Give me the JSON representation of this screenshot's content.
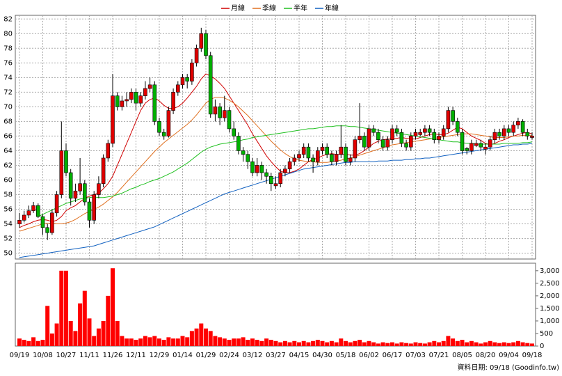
{
  "chart_data": {
    "type": "candlestick",
    "legend_position": "top",
    "series": [
      {
        "name": "月線",
        "color": "#d00000",
        "values": [
          53.5,
          53.8,
          54.0,
          54.3,
          54.5,
          54.6,
          54.5,
          54.3,
          54.5,
          55.0,
          55.8,
          56.2,
          56.5,
          57.0,
          57.5,
          57.8,
          58.0,
          58.2,
          58.8,
          59.5,
          60.5,
          62.0,
          63.5,
          65.0,
          66.5,
          68.0,
          69.5,
          70.5,
          71.0,
          71.2,
          70.8,
          70.2,
          69.8,
          69.8,
          70.0,
          70.5,
          71.2,
          72.0,
          72.8,
          73.8,
          74.5,
          74.2,
          73.8,
          73.2,
          72.5,
          71.5,
          70.5,
          69.5,
          68.5,
          67.5,
          66.3,
          65.3,
          64.3,
          63.3,
          62.5,
          61.8,
          61.2,
          61.0,
          61.0,
          61.2,
          61.5,
          62.0,
          62.5,
          62.8,
          63.0,
          63.3,
          63.5,
          63.6,
          63.5,
          63.5,
          63.5,
          63.4,
          63.4,
          63.6,
          64.0,
          64.5,
          65.0,
          65.3,
          65.5,
          65.6,
          65.6,
          65.7,
          65.8,
          65.7,
          65.6,
          65.6,
          65.8,
          66.0,
          66.2,
          66.3,
          66.2,
          66.2,
          66.4,
          66.8,
          67.2,
          67.0,
          66.5,
          66.0,
          65.7,
          65.4,
          65.0,
          64.8,
          65.0,
          65.3,
          65.5,
          65.8,
          66.0,
          66.2,
          66.4,
          66.5,
          66.3
        ]
      },
      {
        "name": "季線",
        "color": "#e07020",
        "values": [
          53.0,
          53.2,
          53.4,
          53.6,
          53.8,
          54.0,
          54.1,
          54.1,
          54.0,
          54.0,
          54.1,
          54.3,
          54.6,
          55.0,
          55.4,
          55.7,
          56.0,
          56.3,
          56.7,
          57.2,
          57.7,
          58.3,
          59.0,
          59.7,
          60.4,
          61.1,
          61.8,
          62.5,
          63.2,
          63.9,
          64.5,
          65.1,
          65.6,
          66.1,
          66.6,
          67.1,
          67.6,
          68.2,
          68.9,
          69.7,
          70.5,
          71.0,
          71.3,
          71.3,
          71.2,
          70.9,
          70.5,
          70.0,
          69.4,
          68.8,
          68.1,
          67.4,
          66.7,
          66.0,
          65.3,
          64.7,
          64.1,
          63.6,
          63.2,
          62.9,
          62.7,
          62.6,
          62.5,
          62.5,
          62.4,
          62.4,
          62.4,
          62.5,
          62.6,
          62.7,
          62.9,
          63.0,
          63.2,
          63.4,
          63.6,
          63.8,
          64.0,
          64.2,
          64.4,
          64.6,
          64.8,
          64.9,
          65.0,
          65.1,
          65.2,
          65.3,
          65.4,
          65.5,
          65.6,
          65.7,
          65.8,
          65.9,
          66.0,
          66.1,
          66.2,
          66.3,
          66.3,
          66.3,
          66.2,
          66.1,
          66.0,
          65.9,
          65.8,
          65.8,
          65.8,
          65.9,
          66.0,
          66.0,
          66.1,
          66.1,
          66.1
        ]
      },
      {
        "name": "半年",
        "color": "#20c020",
        "values": [
          null,
          null,
          null,
          null,
          55.0,
          55.3,
          55.6,
          55.9,
          56.2,
          56.5,
          56.8,
          57.0,
          57.2,
          57.4,
          57.5,
          57.6,
          57.7,
          57.6,
          57.6,
          57.7,
          57.8,
          58.0,
          58.2,
          58.5,
          58.8,
          59.0,
          59.3,
          59.5,
          59.8,
          60.0,
          60.2,
          60.5,
          60.8,
          61.1,
          61.5,
          61.9,
          62.3,
          62.8,
          63.3,
          63.8,
          64.2,
          64.5,
          64.7,
          64.9,
          65.0,
          65.1,
          65.2,
          65.3,
          65.5,
          65.6,
          65.8,
          65.9,
          66.0,
          66.1,
          66.2,
          66.3,
          66.4,
          66.5,
          66.6,
          66.7,
          66.8,
          66.9,
          67.0,
          67.0,
          67.1,
          67.2,
          67.3,
          67.3,
          67.4,
          67.4,
          67.4,
          67.3,
          67.3,
          67.2,
          67.1,
          67.0,
          66.9,
          66.8,
          66.7,
          66.6,
          66.5,
          66.4,
          66.3,
          66.2,
          66.1,
          66.0,
          65.9,
          65.8,
          65.7,
          65.6,
          65.5,
          65.4,
          65.3,
          65.2,
          65.2,
          65.1,
          65.0,
          65.0,
          64.9,
          64.9,
          64.9,
          64.9,
          64.9,
          64.9,
          65.0,
          65.0,
          65.0,
          65.0,
          65.1,
          65.1,
          65.2
        ]
      },
      {
        "name": "年線",
        "color": "#1060c0",
        "values": [
          49.4,
          49.5,
          49.6,
          49.7,
          49.8,
          49.9,
          50.0,
          50.1,
          50.2,
          50.3,
          50.4,
          50.5,
          50.6,
          50.7,
          50.8,
          50.9,
          51.0,
          51.2,
          51.4,
          51.6,
          51.8,
          52.0,
          52.2,
          52.4,
          52.6,
          52.8,
          53.0,
          53.2,
          53.4,
          53.6,
          53.9,
          54.2,
          54.5,
          54.8,
          55.1,
          55.4,
          55.7,
          56.0,
          56.3,
          56.6,
          56.9,
          57.2,
          57.5,
          57.8,
          58.1,
          58.3,
          58.5,
          58.7,
          58.9,
          59.1,
          59.3,
          59.5,
          59.7,
          59.9,
          60.1,
          60.3,
          60.5,
          60.7,
          60.9,
          61.1,
          61.3,
          61.5,
          61.6,
          61.7,
          61.8,
          61.9,
          62.0,
          62.1,
          62.2,
          62.3,
          62.4,
          62.4,
          62.5,
          62.5,
          62.5,
          62.5,
          62.5,
          62.6,
          62.6,
          62.6,
          62.7,
          62.7,
          62.7,
          62.8,
          62.8,
          62.9,
          62.9,
          63.0,
          63.0,
          63.1,
          63.2,
          63.3,
          63.4,
          63.5,
          63.6,
          63.7,
          63.8,
          63.9,
          64.0,
          64.1,
          64.2,
          64.3,
          64.4,
          64.5,
          64.6,
          64.7,
          64.8,
          64.8,
          64.9,
          64.9,
          65.0
        ]
      }
    ],
    "open": [
      54.0,
      54.5,
      55.2,
      55.8,
      56.5,
      55.0,
      53.5,
      52.8,
      55.5,
      58.0,
      64.0,
      61.0,
      57.5,
      58.5,
      59.5,
      57.0,
      54.5,
      58.0,
      59.5,
      63.0,
      65.0,
      71.5,
      70.0,
      70.8,
      71.0,
      72.0,
      70.5,
      71.5,
      72.5,
      73.0,
      68.0,
      66.5,
      66.0,
      69.5,
      72.0,
      73.0,
      74.0,
      73.5,
      76.0,
      78.0,
      80.0,
      77.0,
      69.0,
      70.0,
      68.5,
      69.5,
      67.0,
      66.0,
      64.0,
      63.5,
      62.5,
      61.0,
      62.0,
      61.0,
      60.5,
      59.2,
      59.5,
      61.0,
      61.5,
      62.5,
      63.0,
      63.5,
      64.5,
      63.0,
      62.5,
      64.0,
      64.5,
      63.5,
      62.5,
      63.5,
      64.5,
      62.5,
      63.0,
      65.5,
      66.0,
      64.5,
      67.0,
      66.5,
      65.5,
      64.5,
      65.5,
      67.0,
      66.5,
      65.0,
      64.5,
      66.0,
      66.2,
      66.5,
      67.0,
      66.5,
      65.5,
      66.0,
      67.0,
      69.5,
      68.0,
      66.5,
      64.3,
      64.0,
      64.7,
      65.0,
      64.2,
      64.5,
      65.5,
      66.5,
      66.0,
      67.0,
      66.5,
      67.5,
      68.0,
      66.5,
      65.8
    ],
    "high": [
      55.5,
      55.8,
      56.5,
      57.0,
      56.8,
      55.3,
      54.0,
      56.0,
      58.5,
      68.0,
      65.0,
      61.5,
      59.5,
      63.0,
      60.0,
      57.5,
      58.5,
      60.5,
      63.5,
      65.5,
      74.5,
      72.0,
      71.5,
      72.0,
      72.5,
      72.5,
      72.0,
      73.5,
      74.0,
      73.5,
      68.5,
      67.0,
      70.0,
      72.5,
      73.5,
      74.5,
      74.5,
      76.5,
      78.5,
      80.8,
      80.5,
      77.5,
      71.0,
      70.5,
      71.5,
      70.0,
      68.0,
      66.5,
      64.5,
      64.0,
      63.0,
      63.0,
      62.5,
      61.5,
      61.0,
      60.5,
      61.5,
      62.0,
      63.0,
      63.5,
      64.0,
      65.0,
      65.0,
      63.5,
      64.5,
      65.0,
      65.0,
      64.0,
      64.0,
      67.5,
      65.0,
      63.5,
      66.0,
      70.5,
      66.5,
      67.5,
      67.5,
      67.0,
      66.0,
      66.0,
      67.5,
      67.5,
      67.0,
      65.5,
      66.5,
      67.0,
      67.0,
      67.5,
      67.5,
      67.0,
      66.5,
      67.5,
      70.0,
      70.0,
      68.5,
      67.0,
      64.5,
      65.5,
      65.5,
      65.5,
      65.0,
      66.0,
      67.0,
      67.0,
      67.5,
      67.5,
      68.0,
      68.5,
      68.3,
      67.0,
      66.5
    ],
    "low": [
      53.5,
      54.2,
      54.8,
      55.5,
      54.8,
      52.5,
      51.8,
      52.5,
      55.0,
      57.5,
      60.5,
      56.5,
      57.0,
      58.0,
      56.5,
      53.5,
      54.0,
      57.5,
      59.0,
      62.5,
      64.5,
      69.5,
      69.5,
      70.0,
      70.5,
      69.5,
      70.0,
      71.0,
      72.0,
      67.5,
      66.0,
      65.5,
      65.8,
      69.0,
      71.5,
      72.5,
      72.5,
      73.0,
      75.5,
      77.5,
      76.5,
      68.5,
      68.0,
      67.5,
      68.0,
      66.5,
      65.5,
      63.5,
      62.5,
      61.5,
      60.5,
      60.5,
      60.0,
      59.5,
      58.5,
      58.8,
      59.0,
      60.5,
      61.0,
      62.0,
      62.5,
      63.0,
      62.5,
      61.0,
      62.0,
      63.5,
      63.0,
      62.0,
      62.0,
      63.0,
      62.0,
      62.0,
      62.5,
      65.0,
      64.0,
      64.0,
      66.0,
      65.0,
      64.0,
      64.0,
      65.0,
      66.0,
      64.5,
      64.0,
      64.0,
      65.5,
      66.0,
      66.0,
      66.0,
      65.0,
      65.0,
      65.5,
      66.5,
      67.5,
      66.0,
      63.5,
      63.5,
      63.5,
      64.5,
      64.0,
      63.5,
      64.0,
      65.0,
      65.5,
      65.5,
      66.0,
      66.0,
      67.0,
      66.0,
      65.5,
      65.5
    ],
    "close": [
      54.5,
      55.2,
      55.8,
      56.5,
      55.0,
      53.5,
      52.8,
      55.5,
      58.0,
      64.0,
      61.0,
      57.5,
      58.5,
      59.5,
      57.0,
      54.5,
      58.0,
      59.5,
      63.0,
      65.0,
      71.5,
      70.0,
      70.8,
      71.0,
      72.0,
      70.5,
      71.5,
      72.5,
      73.0,
      68.0,
      66.5,
      66.0,
      69.5,
      72.0,
      73.0,
      74.0,
      73.5,
      76.0,
      78.0,
      80.0,
      77.0,
      69.0,
      70.0,
      68.5,
      69.5,
      67.0,
      66.0,
      64.0,
      63.5,
      62.5,
      61.0,
      62.0,
      61.0,
      60.5,
      59.5,
      59.5,
      61.0,
      61.5,
      62.5,
      63.0,
      63.5,
      64.5,
      63.0,
      62.5,
      64.0,
      64.5,
      63.5,
      62.5,
      63.5,
      64.5,
      62.5,
      63.0,
      65.5,
      66.0,
      64.5,
      67.0,
      66.5,
      65.5,
      64.5,
      65.5,
      67.0,
      66.5,
      65.0,
      64.5,
      66.0,
      66.5,
      66.5,
      67.0,
      66.5,
      65.5,
      66.0,
      67.0,
      69.5,
      68.0,
      66.5,
      64.0,
      64.0,
      65.0,
      65.0,
      64.5,
      64.5,
      65.5,
      66.5,
      66.0,
      67.0,
      66.5,
      67.5,
      68.0,
      66.5,
      66.0,
      66.0
    ],
    "volume": [
      300,
      250,
      200,
      350,
      200,
      250,
      1600,
      500,
      900,
      3000,
      3000,
      1000,
      600,
      1700,
      2200,
      1100,
      400,
      700,
      1000,
      2000,
      3100,
      1000,
      400,
      300,
      300,
      250,
      300,
      400,
      350,
      400,
      300,
      250,
      350,
      300,
      300,
      400,
      350,
      600,
      700,
      900,
      700,
      600,
      400,
      350,
      300,
      250,
      300,
      300,
      350,
      250,
      300,
      250,
      200,
      300,
      250,
      200,
      150,
      200,
      150,
      200,
      150,
      200,
      150,
      200,
      250,
      200,
      150,
      200,
      150,
      300,
      200,
      150,
      200,
      250,
      150,
      200,
      150,
      100,
      150,
      120,
      150,
      100,
      150,
      120,
      100,
      150,
      120,
      100,
      150,
      200,
      150,
      200,
      400,
      300,
      200,
      250,
      150,
      200,
      150,
      100,
      150,
      200,
      150,
      120,
      150,
      120,
      150,
      200,
      150,
      120,
      100
    ],
    "up_color": "#e00000",
    "down_color": "#00b000",
    "volume_color": "#ff0000",
    "xticks": [
      {
        "value": 0,
        "label": "09/19"
      },
      {
        "value": 5,
        "label": "10/08"
      },
      {
        "value": 10,
        "label": "10/27"
      },
      {
        "value": 15,
        "label": "11/11"
      },
      {
        "value": 20,
        "label": "11/26"
      },
      {
        "value": 25,
        "label": "12/11"
      },
      {
        "value": 30,
        "label": "12/29"
      },
      {
        "value": 35,
        "label": "01/14"
      },
      {
        "value": 40,
        "label": "01/29"
      },
      {
        "value": 45,
        "label": "02/24"
      },
      {
        "value": 50,
        "label": "03/12"
      },
      {
        "value": 55,
        "label": "03/27"
      },
      {
        "value": 60,
        "label": "04/15"
      },
      {
        "value": 65,
        "label": "04/30"
      },
      {
        "value": 70,
        "label": "05/18"
      },
      {
        "value": 75,
        "label": "06/02"
      },
      {
        "value": 80,
        "label": "06/17"
      },
      {
        "value": 85,
        "label": "07/03"
      },
      {
        "value": 90,
        "label": "07/21"
      },
      {
        "value": 95,
        "label": "08/05"
      },
      {
        "value": 100,
        "label": "08/20"
      },
      {
        "value": 105,
        "label": "09/04"
      },
      {
        "value": 110,
        "label": "09/18"
      }
    ],
    "xlim": [
      0,
      110
    ],
    "ylim": [
      49.2,
      82.5
    ],
    "yticks": [
      50,
      52,
      54,
      56,
      58,
      60,
      62,
      64,
      66,
      68,
      70,
      72,
      74,
      76,
      78,
      80,
      82
    ],
    "y2lim": [
      0,
      3300
    ],
    "y2ticks": [
      0,
      500,
      {
        "value": 1000,
        "label": "1,000"
      },
      {
        "value": 1500,
        "label": "1,500"
      },
      {
        "value": 2000,
        "label": "2,000"
      },
      {
        "value": 2500,
        "label": "2,500"
      },
      {
        "value": 3000,
        "label": "3,000"
      }
    ],
    "grid": true,
    "footnote": "資料日期: 09/18  (Goodinfo.tw)"
  }
}
